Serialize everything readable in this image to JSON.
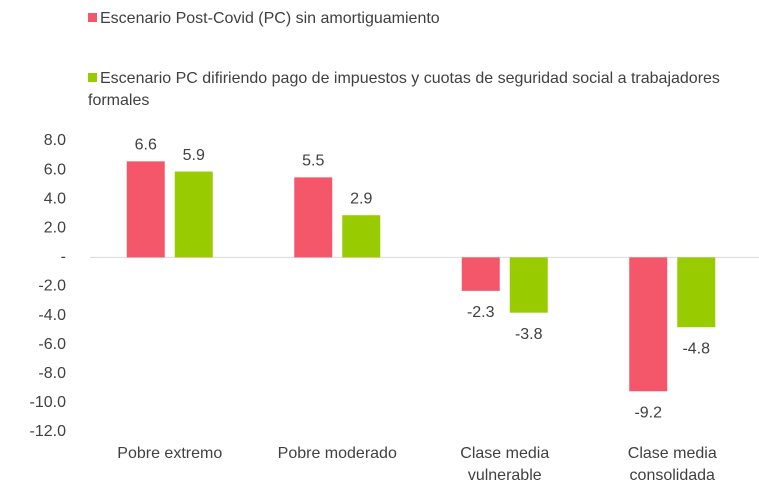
{
  "chart_data": {
    "type": "bar",
    "categories": [
      "Pobre extremo",
      "Pobre moderado",
      "Clase media vulnerable",
      "Clase media consolidada"
    ],
    "series": [
      {
        "name": "Escenario Post-Covid (PC) sin amortiguamiento",
        "color": "#f4566a",
        "values": [
          6.6,
          5.5,
          -2.3,
          -9.2
        ]
      },
      {
        "name": "Escenario PC difiriendo pago de impuestos y cuotas de seguridad social a trabajadores formales",
        "color": "#99cc00",
        "values": [
          5.9,
          2.9,
          -3.8,
          -4.8
        ]
      }
    ],
    "ylim": [
      -12,
      8
    ],
    "yticks": [
      {
        "value": 8,
        "label": "8.0"
      },
      {
        "value": 6,
        "label": "6.0"
      },
      {
        "value": 4,
        "label": "4.0"
      },
      {
        "value": 2,
        "label": "2.0"
      },
      {
        "value": 0,
        "label": "-"
      },
      {
        "value": -2,
        "label": "-2.0"
      },
      {
        "value": -4,
        "label": "-4.0"
      },
      {
        "value": -6,
        "label": "-6.0"
      },
      {
        "value": -8,
        "label": "-8.0"
      },
      {
        "value": -10,
        "label": "-10.0"
      },
      {
        "value": -12,
        "label": "-12.0"
      }
    ],
    "grid": false,
    "legend": "top"
  }
}
